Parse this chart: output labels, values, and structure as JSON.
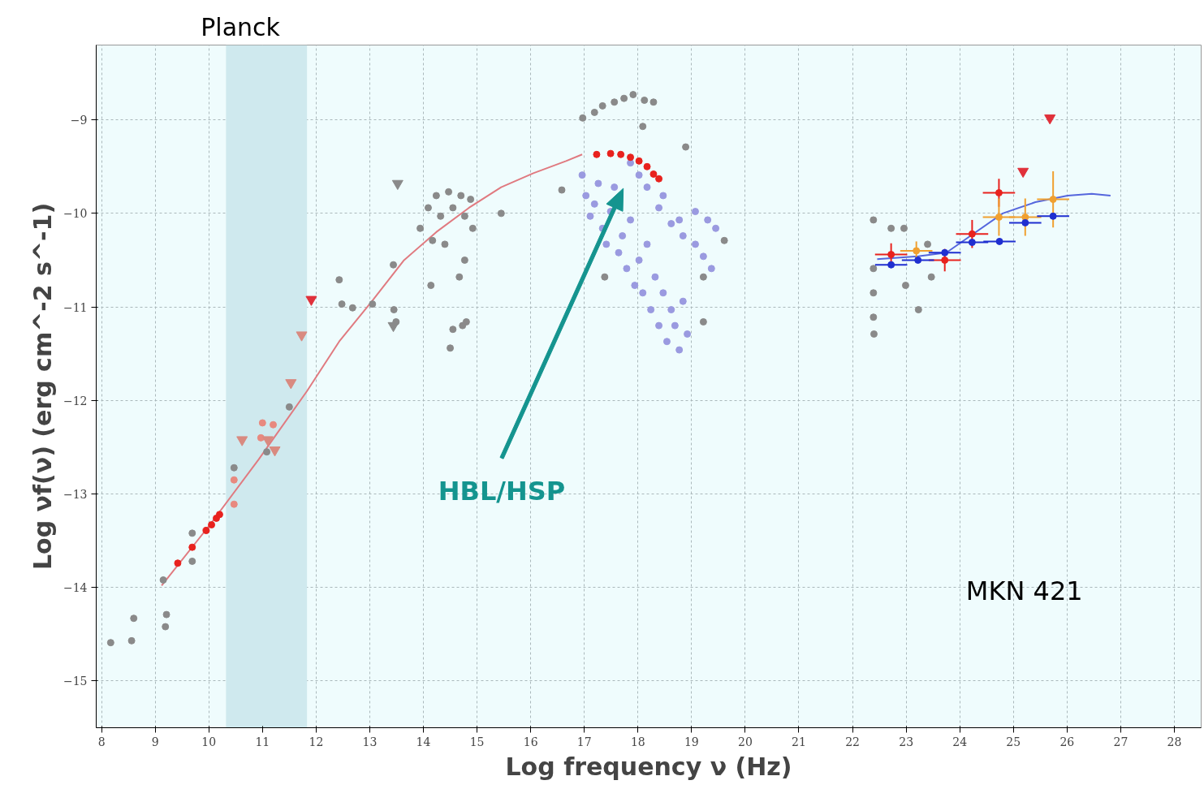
{
  "chart_data": {
    "type": "scatter",
    "xlabel": "Log frequency ν (Hz)",
    "ylabel": "Log νf(ν) (erg cm^-2 s^-1)",
    "xlim": [
      7.9,
      28.5
    ],
    "ylim": [
      -15.5,
      -8.2
    ],
    "xticks": [
      8,
      9,
      10,
      11,
      12,
      13,
      14,
      15,
      16,
      17,
      18,
      19,
      20,
      21,
      22,
      23,
      24,
      25,
      26,
      27,
      28
    ],
    "yticks": [
      -15,
      -14,
      -13,
      -12,
      -11,
      -10,
      -9
    ],
    "grid": true,
    "marker": "circle",
    "bands": [
      {
        "axis": "x",
        "from": 10.32,
        "to": 11.83,
        "label": "Planck",
        "color": "#cfe9ee"
      }
    ],
    "annotations": [
      "HBL/HSP",
      "MKN 421"
    ],
    "series": [
      {
        "type": "line",
        "marker": "none",
        "color": "#e07a80",
        "x": [
          9.12,
          10.02,
          10.93,
          11.83,
          12.43,
          13.04,
          13.64,
          14.24,
          14.85,
          15.45,
          16.05,
          16.66,
          16.96
        ],
        "values": [
          -13.98,
          -13.33,
          -12.63,
          -11.9,
          -11.37,
          -10.94,
          -10.5,
          -10.2,
          -9.94,
          -9.72,
          -9.57,
          -9.44,
          -9.37
        ]
      },
      {
        "type": "line",
        "marker": "none",
        "color": "#5566dd",
        "x": [
          22.46,
          23.22,
          23.75,
          24.2,
          24.8,
          25.41,
          26.01,
          26.46,
          26.81
        ],
        "values": [
          -10.49,
          -10.46,
          -10.42,
          -10.24,
          -10.0,
          -9.88,
          -9.81,
          -9.79,
          -9.81
        ]
      },
      {
        "color": "#8a8a8a",
        "x": [
          8.17,
          8.56,
          8.6,
          9.15,
          9.19,
          9.21,
          9.69,
          9.69,
          10.47,
          11.08,
          11.5,
          12.43,
          12.48,
          12.68,
          13.05,
          13.44,
          13.45,
          13.49,
          13.94,
          14.09,
          14.24,
          14.32,
          14.47,
          14.55,
          14.7,
          14.77,
          14.88,
          14.92,
          14.4,
          14.17,
          14.14,
          14.67,
          14.77,
          14.55,
          14.73,
          14.8,
          14.5,
          15.45,
          16.58,
          16.97,
          17.19,
          17.34,
          17.56,
          17.74,
          17.91,
          18.09,
          18.12,
          18.29,
          18.89,
          17.38,
          19.22,
          19.61,
          19.22,
          22.39,
          22.39,
          22.39,
          22.39,
          22.4,
          22.72,
          22.96,
          22.99,
          23.23,
          23.4,
          23.47
        ],
        "values": [
          -14.59,
          -14.57,
          -14.33,
          -13.92,
          -14.42,
          -14.29,
          -13.72,
          -13.42,
          -12.72,
          -12.55,
          -12.07,
          -10.71,
          -10.97,
          -11.01,
          -10.97,
          -10.55,
          -11.03,
          -11.16,
          -10.16,
          -9.94,
          -9.81,
          -10.03,
          -9.77,
          -9.94,
          -9.81,
          -10.03,
          -9.85,
          -10.16,
          -10.33,
          -10.29,
          -10.77,
          -10.68,
          -10.5,
          -11.24,
          -11.2,
          -11.16,
          -11.44,
          -10.0,
          -9.75,
          -8.98,
          -8.92,
          -8.85,
          -8.81,
          -8.77,
          -8.73,
          -9.07,
          -8.79,
          -8.81,
          -9.29,
          -10.68,
          -10.68,
          -10.29,
          -11.16,
          -10.07,
          -10.59,
          -10.85,
          -11.11,
          -11.29,
          -10.16,
          -10.16,
          -10.77,
          -11.03,
          -10.33,
          -10.68
        ]
      },
      {
        "color": "#9a9ae0",
        "x": [
          16.96,
          17.03,
          17.11,
          17.19,
          17.26,
          17.34,
          17.41,
          17.49,
          17.56,
          17.64,
          17.71,
          17.79,
          17.86,
          17.94,
          18.02,
          18.09,
          18.17,
          18.24,
          18.32,
          18.39,
          18.47,
          18.54,
          18.62,
          18.69,
          18.77,
          18.84,
          18.92,
          18.17,
          18.39,
          18.62,
          18.84,
          19.07,
          19.22,
          19.37,
          19.3,
          19.07,
          19.45,
          18.47,
          18.77,
          17.86,
          18.02
        ],
        "values": [
          -9.59,
          -9.81,
          -10.03,
          -9.9,
          -9.68,
          -10.16,
          -10.33,
          -9.98,
          -9.72,
          -10.42,
          -10.24,
          -10.59,
          -10.07,
          -10.77,
          -10.5,
          -10.85,
          -10.33,
          -11.03,
          -10.68,
          -11.2,
          -10.85,
          -11.37,
          -11.03,
          -11.2,
          -11.46,
          -10.94,
          -11.29,
          -9.72,
          -9.94,
          -10.11,
          -10.24,
          -10.33,
          -10.46,
          -10.59,
          -10.07,
          -9.98,
          -10.16,
          -9.81,
          -10.07,
          -9.46,
          -9.59
        ]
      },
      {
        "color": "#e8897f",
        "x": [
          10.47,
          10.47,
          11.0,
          10.97,
          11.2
        ],
        "values": [
          -13.11,
          -12.85,
          -12.24,
          -12.4,
          -12.26
        ]
      },
      {
        "color": "#e8221e",
        "x": [
          9.42,
          9.69,
          9.95,
          10.05,
          10.14,
          10.2,
          17.23,
          17.49,
          17.68,
          17.86,
          18.02,
          18.17,
          18.29,
          18.39,
          22.72,
          23.72,
          24.23,
          24.73
        ],
        "values": [
          -13.74,
          -13.57,
          -13.39,
          -13.33,
          -13.26,
          -13.22,
          -9.37,
          -9.36,
          -9.37,
          -9.4,
          -9.44,
          -9.5,
          -9.58,
          -9.63,
          -10.44,
          -10.5,
          -10.22,
          -9.78
        ],
        "errors": [
          null,
          null,
          null,
          null,
          null,
          null,
          null,
          null,
          null,
          null,
          null,
          null,
          null,
          null,
          0.12,
          0.12,
          0.15,
          0.15
        ],
        "xerrors": [
          null,
          null,
          null,
          null,
          null,
          null,
          null,
          null,
          null,
          null,
          null,
          null,
          null,
          null,
          0.3,
          0.3,
          0.3,
          0.3
        ]
      },
      {
        "color": "#f0a030",
        "x": [
          23.19,
          24.73,
          25.22,
          25.74
        ],
        "values": [
          -10.4,
          -10.04,
          -10.04,
          -9.85
        ],
        "errors": [
          0.1,
          0.2,
          0.2,
          0.3
        ],
        "xerrors": [
          0.3,
          0.3,
          0.3,
          0.3
        ]
      },
      {
        "color": "#1f2fd0",
        "x": [
          22.72,
          23.22,
          23.72,
          24.23,
          24.74,
          25.22,
          25.74
        ],
        "values": [
          -10.55,
          -10.5,
          -10.42,
          -10.31,
          -10.3,
          -10.1,
          -10.03
        ],
        "xerrors": [
          0.3,
          0.3,
          0.3,
          0.3,
          0.3,
          0.3,
          0.3
        ]
      },
      {
        "marker": "triangle",
        "color": "#e0303a",
        "x": [
          11.91,
          25.18,
          25.68
        ],
        "values": [
          -10.92,
          -9.55,
          -8.98
        ]
      },
      {
        "marker": "triangle",
        "color": "#d98a80",
        "x": [
          11.73,
          11.53,
          10.62,
          11.23,
          11.1
        ],
        "values": [
          -11.3,
          -11.81,
          -12.42,
          -12.53,
          -12.42
        ]
      },
      {
        "marker": "triangle",
        "color": "#8a8a8a",
        "x": [
          13.52,
          13.44
        ],
        "values": [
          -9.68,
          -11.2
        ]
      }
    ]
  }
}
